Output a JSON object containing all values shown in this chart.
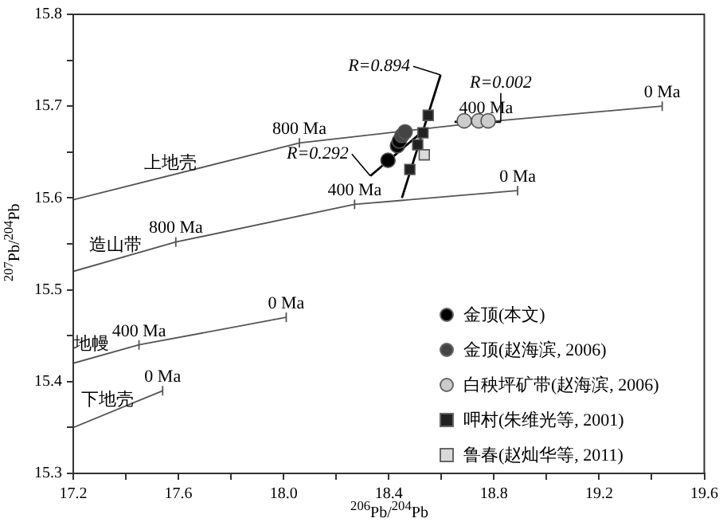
{
  "chart_data": {
    "type": "scatter",
    "xlabel": "$^{206}$Pb/$^{204}$Pb",
    "ylabel": "$^{207}$Pb/$^{204}$Pb",
    "xlim": [
      17.2,
      19.6
    ],
    "ylim": [
      15.3,
      15.8
    ],
    "xticks": [
      17.2,
      {
        "value": 17.4,
        "label": null
      },
      17.6,
      {
        "value": 17.8,
        "label": null
      },
      {
        "value": 18,
        "label": "18.0"
      },
      {
        "value": 18.2,
        "label": null
      },
      18.4,
      {
        "value": 18.6,
        "label": null
      },
      18.8,
      {
        "value": 19,
        "label": null
      },
      19.2,
      {
        "value": 19.4,
        "label": null
      },
      19.6
    ],
    "yticks": [
      15.3,
      {
        "value": 15.35,
        "label": null
      },
      15.4,
      {
        "value": 15.45,
        "label": null
      },
      15.5,
      {
        "value": 15.55,
        "label": null
      },
      15.6,
      {
        "value": 15.65,
        "label": null
      },
      15.7,
      {
        "value": 15.75,
        "label": null
      },
      15.8
    ],
    "grid": false,
    "legend": "bottom right",
    "series": [
      {
        "type": "line",
        "color": "#555555",
        "x": [
          17.2,
          18.06,
          18.77,
          19.44
        ],
        "values": [
          15.598,
          15.66,
          15.683,
          15.7
        ]
      },
      {
        "type": "line",
        "color": "#555555",
        "x": [
          17.2,
          17.59,
          18.27,
          18.89
        ],
        "values": [
          15.52,
          15.552,
          15.593,
          15.608
        ]
      },
      {
        "type": "line",
        "color": "#555555",
        "x": [
          17.2,
          17.45,
          18.01
        ],
        "values": [
          15.42,
          15.44,
          15.47
        ]
      },
      {
        "type": "line",
        "color": "#555555",
        "x": [
          17.2,
          17.54
        ],
        "values": [
          15.35,
          15.39
        ]
      },
      {
        "name": "R=0.894",
        "type": "line",
        "color": "#000000",
        "marker": "none",
        "x": [
          18.45,
          18.597
        ],
        "values": [
          15.6,
          15.734
        ]
      },
      {
        "name": "R=0.292",
        "type": "line",
        "color": "#000000",
        "marker": "none",
        "x": [
          18.535,
          18.33
        ],
        "values": [
          15.674,
          15.624
        ]
      },
      {
        "name": "R=0.002",
        "type": "line",
        "color": "#000000",
        "marker": "none",
        "x": [
          18.65,
          18.826
        ],
        "values": [
          15.683,
          15.683
        ]
      },
      {
        "name": "金顶(本文)",
        "marker": "circle",
        "color": "#000000",
        "x": [
          18.397,
          18.433,
          18.44
        ],
        "values": [
          15.641,
          15.657,
          15.662
        ]
      },
      {
        "name": "金顶(赵海滨, 2006)",
        "marker": "circle",
        "color": "#444444",
        "x": [
          18.45,
          18.462
        ],
        "values": [
          15.668,
          15.672
        ]
      },
      {
        "name": "白秧坪矿带(赵海滨, 2006)",
        "marker": "circle",
        "color": "#cccccc",
        "x": [
          18.687,
          18.742,
          18.778
        ],
        "values": [
          15.684,
          15.684,
          15.684
        ]
      },
      {
        "name": "呷村(朱维光等, 2001)",
        "marker": "square",
        "color": "#222222",
        "x": [
          18.55,
          18.53,
          18.51,
          18.48
        ],
        "values": [
          15.69,
          15.671,
          15.658,
          15.631
        ]
      },
      {
        "name": "鲁春(赵灿华等, 2011)",
        "marker": "square",
        "color": "#d9d9d9",
        "x": [
          18.535
        ],
        "values": [
          15.647
        ]
      }
    ],
    "annotations": [
      {
        "text": "上地壳",
        "x": 17.57,
        "y": 15.623
      },
      {
        "text": "造山带",
        "x": 17.36,
        "y": 15.533
      },
      {
        "text": "地幔",
        "x": 17.27,
        "y": 15.4256
      },
      {
        "text": "下地壳",
        "x": 17.33,
        "y": 15.365
      },
      {
        "text": "800 Ma",
        "x": 18.06,
        "y": 15.66
      },
      {
        "text": "400 Ma",
        "x": 18.77,
        "y": 15.683
      },
      {
        "text": "0 Ma",
        "x": 19.44,
        "y": 15.7
      },
      {
        "text": "0 Ma",
        "x": 18.89,
        "y": 15.608
      },
      {
        "text": "400 Ma",
        "x": 18.27,
        "y": 15.593
      },
      {
        "text": "800 Ma",
        "x": 17.59,
        "y": 15.552
      },
      {
        "text": "400 Ma",
        "x": 17.45,
        "y": 15.44
      },
      {
        "text": "0 Ma",
        "x": 18.01,
        "y": 15.47
      },
      {
        "text": "0 Ma",
        "x": 17.54,
        "y": 15.39
      }
    ]
  }
}
